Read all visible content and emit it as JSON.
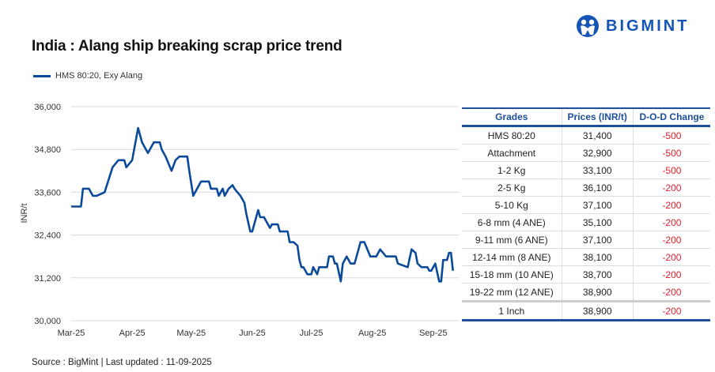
{
  "title": "India : Alang ship breaking scrap price trend",
  "brand": "BIGMINT",
  "source": "Source : BigMint | Last updated : 11-09-2025",
  "colors": {
    "line": "#0b4a9a",
    "header": "#1c4f9c",
    "negative": "#e0202a"
  },
  "chart_data": {
    "type": "line",
    "title": "India : Alang ship breaking scrap price trend",
    "xlabel": "",
    "ylabel": "INR/t",
    "ylim": [
      30000,
      36000
    ],
    "yticks": [
      "30,000",
      "31,200",
      "32,400",
      "33,600",
      "34,800",
      "36,000"
    ],
    "ytick_values": [
      30000,
      31200,
      32400,
      33600,
      34800,
      36000
    ],
    "xlim": [
      "2025-03-01",
      "2025-09-11"
    ],
    "xticks": [
      "Mar-25",
      "Apr-25",
      "May-25",
      "Jun-25",
      "Jul-25",
      "Aug-25",
      "Sep-25"
    ],
    "xtick_dates": [
      "2025-03-01",
      "2025-04-01",
      "2025-05-01",
      "2025-06-01",
      "2025-07-01",
      "2025-08-01",
      "2025-09-01"
    ],
    "grid": "horizontal",
    "legend": "top-left",
    "series": [
      {
        "name": "HMS 80:20, Exy Alang",
        "points": [
          [
            "2025-03-01",
            33200
          ],
          [
            "2025-03-06",
            33200
          ],
          [
            "2025-03-07",
            33700
          ],
          [
            "2025-03-10",
            33700
          ],
          [
            "2025-03-12",
            33500
          ],
          [
            "2025-03-14",
            33500
          ],
          [
            "2025-03-18",
            33600
          ],
          [
            "2025-03-22",
            34300
          ],
          [
            "2025-03-25",
            34500
          ],
          [
            "2025-03-28",
            34500
          ],
          [
            "2025-03-29",
            34300
          ],
          [
            "2025-04-01",
            34500
          ],
          [
            "2025-04-02",
            34800
          ],
          [
            "2025-04-04",
            35400
          ],
          [
            "2025-04-06",
            35000
          ],
          [
            "2025-04-09",
            34700
          ],
          [
            "2025-04-10",
            34800
          ],
          [
            "2025-04-12",
            35000
          ],
          [
            "2025-04-15",
            35000
          ],
          [
            "2025-04-16",
            34800
          ],
          [
            "2025-04-18",
            34600
          ],
          [
            "2025-04-21",
            34200
          ],
          [
            "2025-04-23",
            34500
          ],
          [
            "2025-04-25",
            34600
          ],
          [
            "2025-04-29",
            34600
          ],
          [
            "2025-04-30",
            34200
          ],
          [
            "2025-05-02",
            33500
          ],
          [
            "2025-05-06",
            33900
          ],
          [
            "2025-05-10",
            33900
          ],
          [
            "2025-05-11",
            33700
          ],
          [
            "2025-05-14",
            33700
          ],
          [
            "2025-05-15",
            33500
          ],
          [
            "2025-05-17",
            33700
          ],
          [
            "2025-05-18",
            33500
          ],
          [
            "2025-05-20",
            33700
          ],
          [
            "2025-05-22",
            33800
          ],
          [
            "2025-05-23",
            33700
          ],
          [
            "2025-05-26",
            33500
          ],
          [
            "2025-05-28",
            33300
          ],
          [
            "2025-05-29",
            33000
          ],
          [
            "2025-05-31",
            32500
          ],
          [
            "2025-06-01",
            32500
          ],
          [
            "2025-06-04",
            33100
          ],
          [
            "2025-06-05",
            32900
          ],
          [
            "2025-06-07",
            32900
          ],
          [
            "2025-06-10",
            32600
          ],
          [
            "2025-06-11",
            32700
          ],
          [
            "2025-06-14",
            32700
          ],
          [
            "2025-06-15",
            32500
          ],
          [
            "2025-06-19",
            32500
          ],
          [
            "2025-06-20",
            32200
          ],
          [
            "2025-06-22",
            32200
          ],
          [
            "2025-06-24",
            32100
          ],
          [
            "2025-06-25",
            31700
          ],
          [
            "2025-06-26",
            31500
          ],
          [
            "2025-06-27",
            31500
          ],
          [
            "2025-06-29",
            31300
          ],
          [
            "2025-07-01",
            31300
          ],
          [
            "2025-07-02",
            31500
          ],
          [
            "2025-07-04",
            31300
          ],
          [
            "2025-07-05",
            31500
          ],
          [
            "2025-07-09",
            31500
          ],
          [
            "2025-07-10",
            31800
          ],
          [
            "2025-07-12",
            31800
          ],
          [
            "2025-07-13",
            31600
          ],
          [
            "2025-07-14",
            31600
          ],
          [
            "2025-07-16",
            31100
          ],
          [
            "2025-07-17",
            31600
          ],
          [
            "2025-07-19",
            31800
          ],
          [
            "2025-07-21",
            31600
          ],
          [
            "2025-07-23",
            31600
          ],
          [
            "2025-07-26",
            32200
          ],
          [
            "2025-07-28",
            32200
          ],
          [
            "2025-07-31",
            31800
          ],
          [
            "2025-08-03",
            31800
          ],
          [
            "2025-08-05",
            32000
          ],
          [
            "2025-08-08",
            31800
          ],
          [
            "2025-08-13",
            31800
          ],
          [
            "2025-08-14",
            31600
          ],
          [
            "2025-08-19",
            31500
          ],
          [
            "2025-08-21",
            32000
          ],
          [
            "2025-08-23",
            31900
          ],
          [
            "2025-08-24",
            31600
          ],
          [
            "2025-08-26",
            31500
          ],
          [
            "2025-08-29",
            31500
          ],
          [
            "2025-08-30",
            31400
          ],
          [
            "2025-08-31",
            31400
          ],
          [
            "2025-09-02",
            31600
          ],
          [
            "2025-09-04",
            31100
          ],
          [
            "2025-09-05",
            31100
          ],
          [
            "2025-09-06",
            31700
          ],
          [
            "2025-09-08",
            31700
          ],
          [
            "2025-09-09",
            31900
          ],
          [
            "2025-09-10",
            31900
          ],
          [
            "2025-09-11",
            31400
          ]
        ]
      }
    ]
  },
  "table": {
    "headers": [
      "Grades",
      "Prices (INR/t)",
      "D-O-D Change"
    ],
    "rows": [
      [
        "HMS 80:20",
        "31,400",
        "-500"
      ],
      [
        "Attachment",
        "32,900",
        "-500"
      ],
      [
        "1-2 Kg",
        "33,100",
        "-500"
      ],
      [
        "2-5 Kg",
        "36,100",
        "-200"
      ],
      [
        "5-10 Kg",
        "37,100",
        "-200"
      ],
      [
        "6-8 mm (4 ANE)",
        "35,100",
        "-200"
      ],
      [
        "9-11 mm (6 ANE)",
        "37,100",
        "-200"
      ],
      [
        "12-14 mm (8 ANE)",
        "38,100",
        "-200"
      ],
      [
        "15-18 mm (10 ANE)",
        "38,700",
        "-200"
      ],
      [
        "19-22 mm (12 ANE)",
        "38,900",
        "-200"
      ],
      [
        "1 Inch",
        "38,900",
        "-200"
      ]
    ]
  }
}
